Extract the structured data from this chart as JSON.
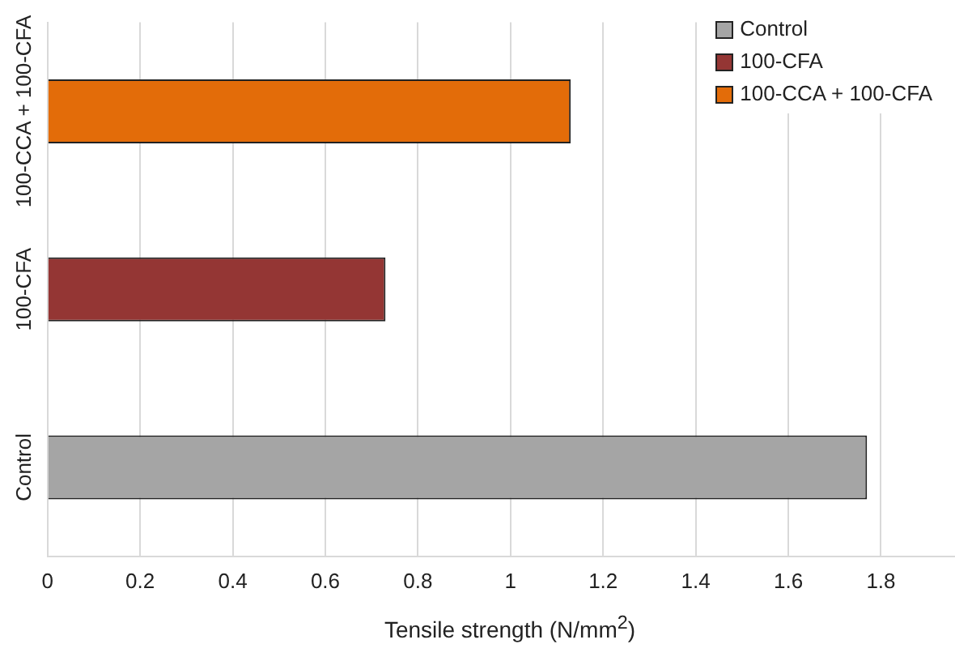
{
  "chart_data": {
    "type": "bar",
    "orientation": "horizontal",
    "xlabel": "Tensile strength (N/mm$^{2}$)",
    "categories": [
      "100-CCA + 100-CFA",
      "100-CFA",
      "Control"
    ],
    "series": [
      {
        "name": "Control",
        "color": "#a5a5a5",
        "values": [
          null,
          null,
          1.77
        ]
      },
      {
        "name": "100-CFA",
        "color": "#943634",
        "values": [
          null,
          0.73,
          null
        ]
      },
      {
        "name": "100-CCA + 100-CFA",
        "color": "#e36c09",
        "values": [
          1.13,
          null,
          null
        ]
      }
    ],
    "xlim": [
      0,
      1.96
    ],
    "xticks": [
      0,
      0.2,
      0.4,
      0.6,
      0.8,
      1,
      1.2,
      1.4,
      1.6,
      1.8
    ],
    "grid": "x",
    "legend": "top right"
  }
}
